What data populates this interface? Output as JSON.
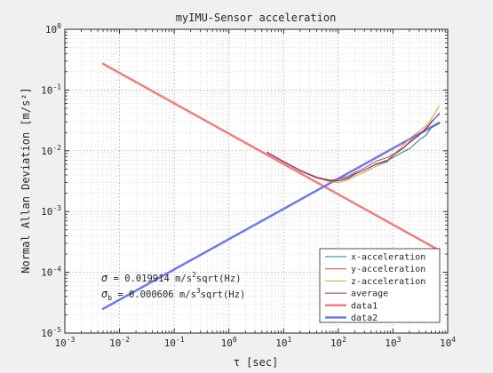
{
  "chart_data": {
    "type": "line",
    "title": "myIMU-Sensor acceleration",
    "xlabel": "τ [sec]",
    "ylabel": "Normal Allan Deviation [m/s²]",
    "xscale": "log",
    "yscale": "log",
    "xlim": [
      0.001,
      10000
    ],
    "ylim": [
      1e-05,
      1
    ],
    "grid": true,
    "legend_position": "bottom-right",
    "x_ticks": [
      {
        "value": 0.001,
        "base": "10",
        "exp": "-3"
      },
      {
        "value": 0.01,
        "base": "10",
        "exp": "-2"
      },
      {
        "value": 0.1,
        "base": "10",
        "exp": "-1"
      },
      {
        "value": 1,
        "base": "10",
        "exp": "0"
      },
      {
        "value": 10,
        "base": "10",
        "exp": "1"
      },
      {
        "value": 100,
        "base": "10",
        "exp": "2"
      },
      {
        "value": 1000,
        "base": "10",
        "exp": "3"
      },
      {
        "value": 10000,
        "base": "10",
        "exp": "4"
      }
    ],
    "y_ticks": [
      {
        "value": 1e-05,
        "base": "10",
        "exp": "-5"
      },
      {
        "value": 0.0001,
        "base": "10",
        "exp": "-4"
      },
      {
        "value": 0.001,
        "base": "10",
        "exp": "-3"
      },
      {
        "value": 0.01,
        "base": "10",
        "exp": "-2"
      },
      {
        "value": 0.1,
        "base": "10",
        "exp": "-1"
      },
      {
        "value": 1,
        "base": "10",
        "exp": "0"
      }
    ],
    "series": [
      {
        "name": "x-acceleration",
        "color": "#1b7f7a",
        "width": 1,
        "x": [
          5,
          10,
          20,
          40,
          70,
          100,
          150,
          200,
          300,
          500,
          800,
          1000,
          1500,
          2000,
          3000,
          4000,
          5000,
          7000
        ],
        "y": [
          0.0093,
          0.0066,
          0.0047,
          0.0036,
          0.0032,
          0.0032,
          0.0036,
          0.0042,
          0.0048,
          0.006,
          0.0068,
          0.0078,
          0.0095,
          0.0108,
          0.015,
          0.018,
          0.024,
          0.028
        ]
      },
      {
        "name": "y-acceleration",
        "color": "#c1502a",
        "width": 1,
        "x": [
          5,
          10,
          20,
          40,
          70,
          100,
          150,
          200,
          300,
          500,
          800,
          1000,
          1500,
          2000,
          3000,
          4000,
          5000,
          7000
        ],
        "y": [
          0.0095,
          0.0067,
          0.0048,
          0.0037,
          0.0033,
          0.0034,
          0.0038,
          0.0044,
          0.0052,
          0.0068,
          0.0078,
          0.0088,
          0.011,
          0.014,
          0.018,
          0.024,
          0.03,
          0.04
        ]
      },
      {
        "name": "z-acceleration",
        "color": "#e0a21f",
        "width": 1,
        "x": [
          5,
          10,
          20,
          40,
          70,
          100,
          150,
          200,
          300,
          500,
          800,
          1000,
          1500,
          2000,
          3000,
          4000,
          5000,
          7000
        ],
        "y": [
          0.0094,
          0.0066,
          0.0047,
          0.0036,
          0.0031,
          0.003,
          0.0033,
          0.0038,
          0.0044,
          0.0056,
          0.0066,
          0.0085,
          0.012,
          0.016,
          0.021,
          0.026,
          0.033,
          0.055
        ]
      },
      {
        "name": "average",
        "color": "#7d2f9e",
        "width": 1,
        "x": [
          5,
          10,
          20,
          40,
          70,
          100,
          150,
          200,
          300,
          500,
          800,
          1000,
          1500,
          2000,
          3000,
          4000,
          5000,
          7000
        ],
        "y": [
          0.0094,
          0.0066,
          0.0047,
          0.0036,
          0.0032,
          0.0032,
          0.0035,
          0.0041,
          0.0048,
          0.0061,
          0.007,
          0.0084,
          0.0108,
          0.0136,
          0.018,
          0.0227,
          0.029,
          0.041
        ]
      },
      {
        "name": "data1",
        "color": "#f07e7e",
        "width": 2.5,
        "x": [
          0.005,
          7000
        ],
        "y": [
          0.27,
          0.00023
        ]
      },
      {
        "name": "data2",
        "color": "#6f79ea",
        "width": 2.5,
        "x": [
          0.005,
          7000
        ],
        "y": [
          2.5e-05,
          0.029
        ]
      }
    ],
    "annotations": [
      {
        "sigma": "σ",
        "sub": "",
        "text": " = 0.019914 m/s",
        "sup": "2",
        "tail": "sqrt(Hz)"
      },
      {
        "sigma": "σ",
        "sub": "b",
        "text": " = 0.000606 m/s",
        "sup": "3",
        "tail": "sqrt(Hz)"
      }
    ],
    "colors": {
      "background": "#f0f0f0",
      "axes_bg": "#ffffff",
      "axis": "#262626",
      "grid": "#c8c8c8"
    }
  }
}
